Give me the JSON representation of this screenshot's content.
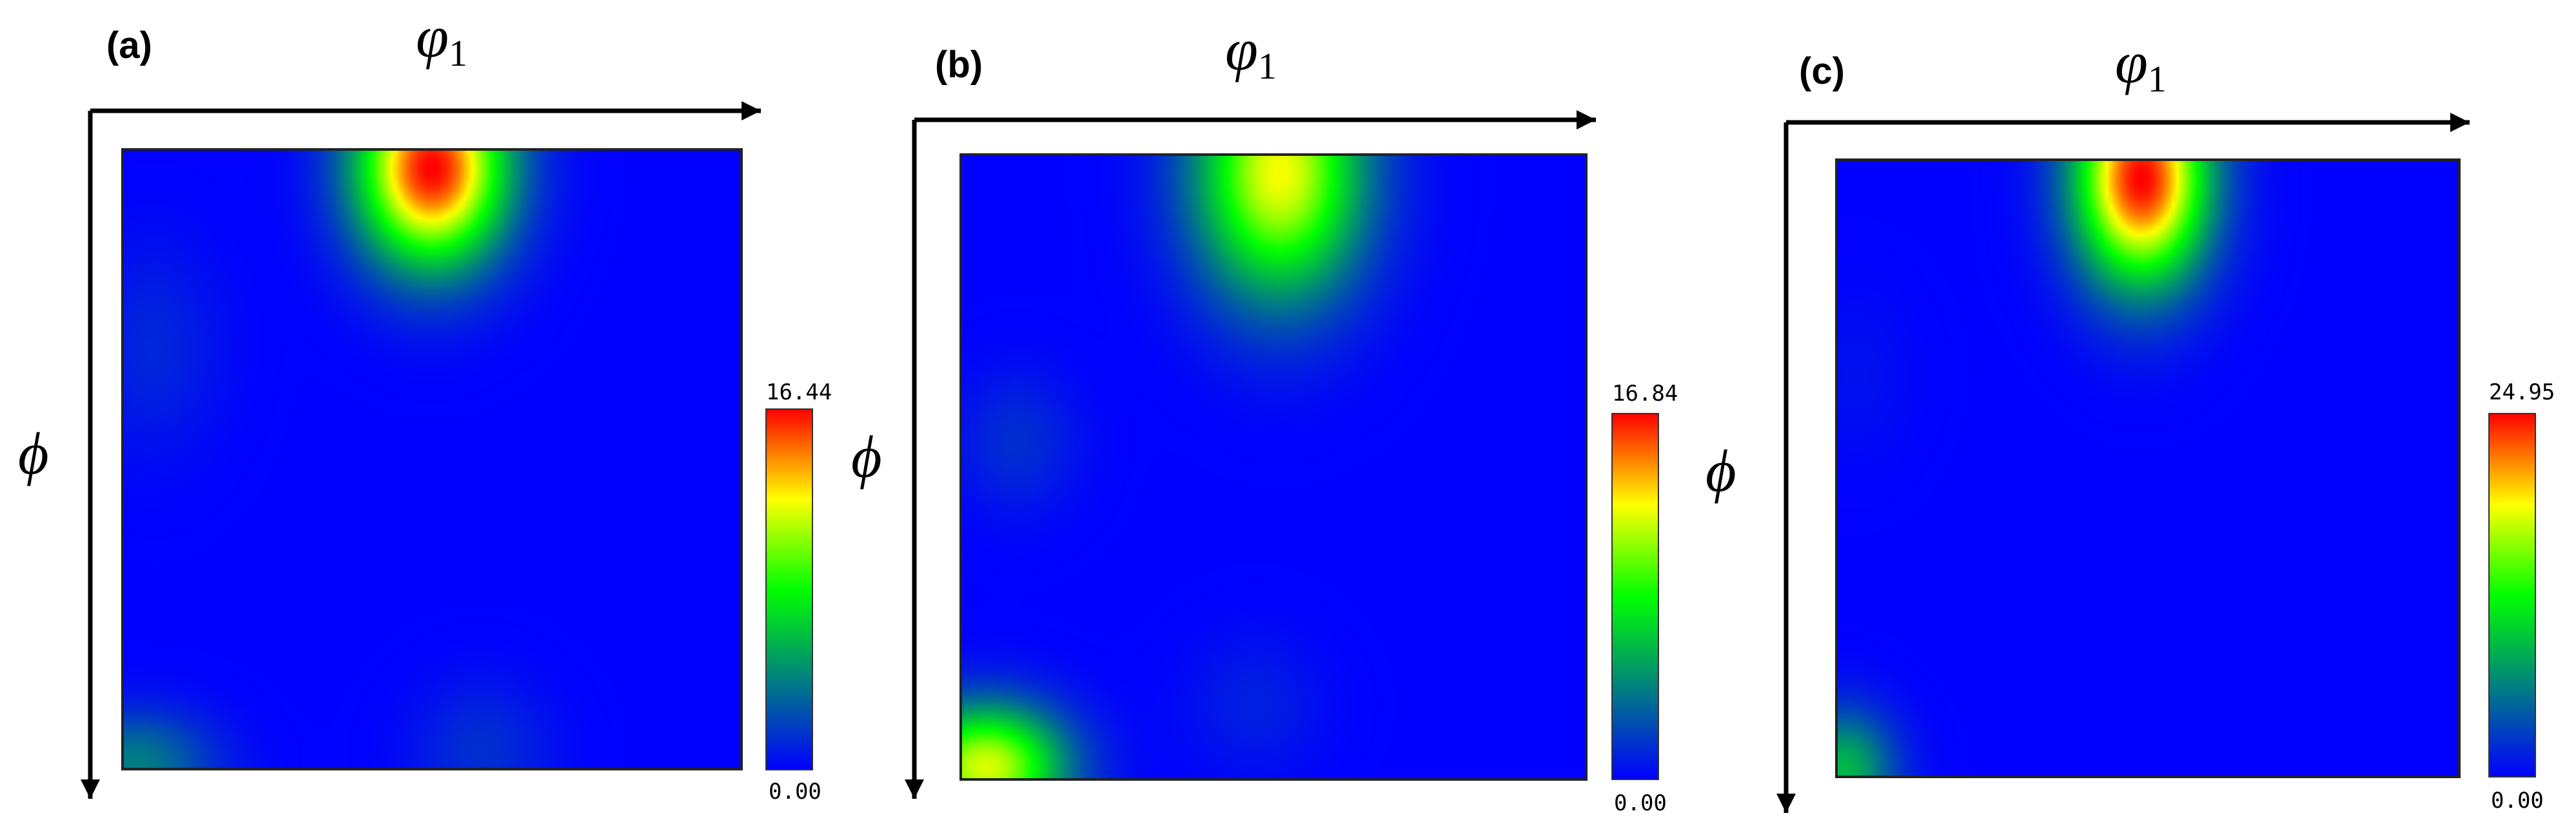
{
  "figure": {
    "colors": {
      "background": "#0000FF",
      "colormap": [
        "#0000FF",
        "#008080",
        "#00FF00",
        "#FFFF00",
        "#FF0000"
      ],
      "axis": "#000000"
    }
  },
  "panels": [
    {
      "label": "(a)",
      "x_axis": {
        "symbol": "φ",
        "subscript": "1"
      },
      "y_axis": {
        "symbol": "ϕ"
      },
      "colorbar": {
        "max_label": "16.44",
        "min_label": "0.00"
      }
    },
    {
      "label": "(b)",
      "x_axis": {
        "symbol": "φ",
        "subscript": "1"
      },
      "y_axis": {
        "symbol": "ϕ"
      },
      "colorbar": {
        "max_label": "16.84",
        "min_label": "0.00"
      }
    },
    {
      "label": "(c)",
      "x_axis": {
        "symbol": "φ",
        "subscript": "1"
      },
      "y_axis": {
        "symbol": "ϕ"
      },
      "colorbar": {
        "max_label": "24.95",
        "min_label": "0.00"
      }
    }
  ],
  "chart_data": [
    {
      "type": "heatmap",
      "x_domain": [
        0,
        1
      ],
      "y_domain": [
        0,
        1
      ],
      "color_range": [
        0,
        16.44
      ],
      "peaks": [
        {
          "x": 0.5,
          "y": 0.03,
          "value": 16.44,
          "sx": 0.085,
          "sy": 0.11
        },
        {
          "x": 0.02,
          "y": 0.99,
          "value": 4.0,
          "sx": 0.09,
          "sy": 0.06
        },
        {
          "x": 0.58,
          "y": 0.97,
          "value": 1.5,
          "sx": 0.08,
          "sy": 0.08
        },
        {
          "x": 0.05,
          "y": 0.32,
          "value": 1.2,
          "sx": 0.08,
          "sy": 0.12
        }
      ]
    },
    {
      "type": "heatmap",
      "x_domain": [
        0,
        1
      ],
      "y_domain": [
        0,
        1
      ],
      "color_range": [
        0,
        16.84
      ],
      "peaks": [
        {
          "x": 0.51,
          "y": 0.03,
          "value": 12.5,
          "sx": 0.095,
          "sy": 0.14
        },
        {
          "x": 0.04,
          "y": 0.98,
          "value": 12.0,
          "sx": 0.09,
          "sy": 0.07
        },
        {
          "x": 0.09,
          "y": 0.46,
          "value": 1.5,
          "sx": 0.07,
          "sy": 0.08
        },
        {
          "x": 0.47,
          "y": 0.88,
          "value": 1.0,
          "sx": 0.08,
          "sy": 0.08
        }
      ]
    },
    {
      "type": "heatmap",
      "x_domain": [
        0,
        1
      ],
      "y_domain": [
        0,
        1
      ],
      "color_range": [
        0,
        24.95
      ],
      "peaks": [
        {
          "x": 0.49,
          "y": 0.03,
          "value": 24.95,
          "sx": 0.075,
          "sy": 0.12
        },
        {
          "x": 0.01,
          "y": 0.99,
          "value": 9.0,
          "sx": 0.06,
          "sy": 0.07
        },
        {
          "x": 0.03,
          "y": 0.35,
          "value": 0.8,
          "sx": 0.07,
          "sy": 0.1
        }
      ]
    }
  ]
}
